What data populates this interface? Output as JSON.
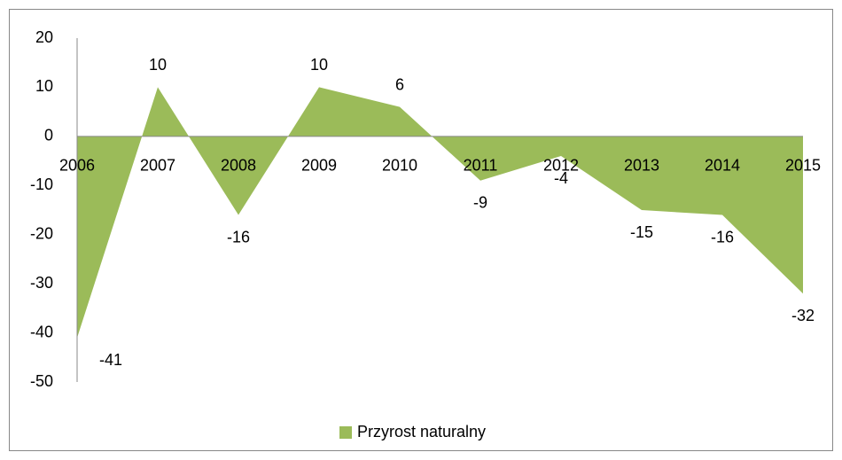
{
  "chart_data": {
    "type": "area",
    "categories": [
      "2006",
      "2007",
      "2008",
      "2009",
      "2010",
      "2011",
      "2012",
      "2013",
      "2014",
      "2015"
    ],
    "series": [
      {
        "name": "Przyrost naturalny",
        "color": "#9bbb59",
        "values": [
          -41,
          10,
          -16,
          10,
          6,
          -9,
          -4,
          -15,
          -16,
          -32
        ]
      }
    ],
    "ylim": [
      -50,
      20
    ],
    "yticks": [
      -50,
      -40,
      -30,
      -20,
      -10,
      0,
      10,
      20
    ],
    "grid": false,
    "legend": "bottom"
  }
}
